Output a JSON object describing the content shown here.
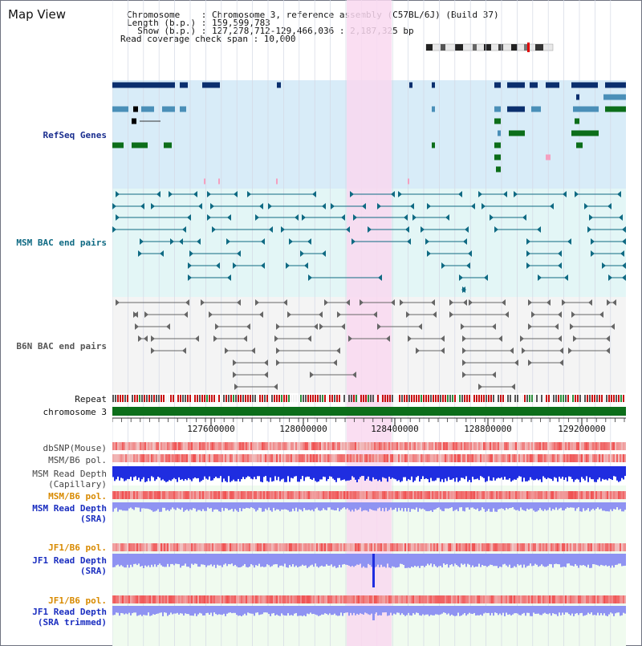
{
  "header": {
    "panel_title": "Map View",
    "info_lines": [
      "Chromosome    : Chromosome 3, reference assembly (C57BL/6J) (Build 37)",
      "Length (b.p.) : 159,599,783",
      "  Show (b.p.) : 127,278,712-129,466,036 : 2,187,325 bp",
      "Read coverage check span : 10,000"
    ]
  },
  "tracks": {
    "refseq": {
      "label": "RefSeq Genes",
      "color": "#1a2e8f"
    },
    "msm_bac": {
      "label": "MSM BAC end pairs",
      "color": "#0f6a83"
    },
    "b6n_bac": {
      "label": "B6N BAC end pairs",
      "color": "#555555"
    },
    "repeat": {
      "label": "Repeat"
    },
    "chromosome": {
      "label": "chromosome 3"
    },
    "dbsnp": {
      "label": "dbSNP(Mouse)"
    },
    "msm_b6_pol": {
      "label": "MSM/B6 pol."
    },
    "msm_depth_cap": {
      "label": "MSM Read Depth\n(Capillary)"
    },
    "msm_b6_pol2": {
      "label": "MSM/B6 pol.",
      "color": "#d88a00"
    },
    "msm_depth_sra": {
      "label": "MSM Read Depth\n(SRA)",
      "color": "#1a2ec0"
    },
    "jf1_b6_pol": {
      "label": "JF1/B6 pol.",
      "color": "#d88a00"
    },
    "jf1_depth_sra": {
      "label": "JF1 Read Depth\n(SRA)",
      "color": "#1a2ec0"
    },
    "jf1_b6_pol2": {
      "label": "JF1/B6 pol.",
      "color": "#d88a00"
    },
    "jf1_depth_trim": {
      "label": "JF1 Read Depth\n(SRA trimmed)",
      "color": "#1a2ec0"
    }
  },
  "axis": {
    "ticks": [
      "127600000",
      "128000000",
      "128400000",
      "128800000",
      "129200000"
    ]
  },
  "colors": {
    "highlight": "#f9d8f0",
    "refseq_bg": "#d8ecf8",
    "bac_bg": "#e3f6f6",
    "b6n_bg": "#f4f4f4",
    "gene_dark": "#0b2f6e",
    "gene_mid": "#4a8fb8",
    "gene_green": "#0c6e1a",
    "chrom_bar": "#0c6e1a",
    "depth_blue": "#1f2de0",
    "depth_light": "#8f93f2",
    "pol_red": "#f24a4a"
  }
}
